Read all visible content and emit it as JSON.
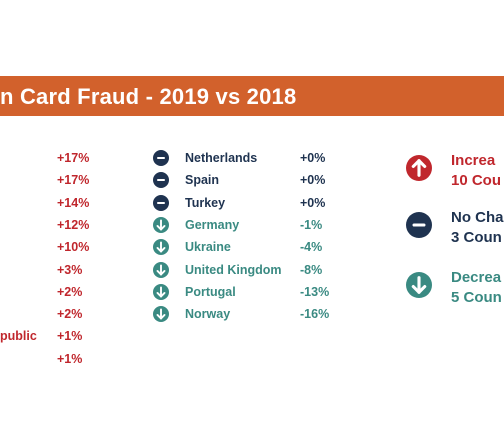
{
  "title": "n Card Fraud - 2019 vs 2018",
  "colors": {
    "increase": "#c0272d",
    "nochange": "#1f3350",
    "decrease": "#3a8a82",
    "banner": "#d2612c"
  },
  "chart_data": {
    "type": "table",
    "title": "n Card Fraud - 2019 vs 2018",
    "left_column": [
      {
        "country": "",
        "change": "+17%"
      },
      {
        "country": "",
        "change": "+17%"
      },
      {
        "country": "",
        "change": "+14%"
      },
      {
        "country": "",
        "change": "+12%"
      },
      {
        "country": "",
        "change": "+10%"
      },
      {
        "country": "",
        "change": "+3%"
      },
      {
        "country": "",
        "change": "+2%"
      },
      {
        "country": "",
        "change": "+2%"
      },
      {
        "country": "public",
        "change": "+1%"
      },
      {
        "country": "",
        "change": "+1%"
      }
    ],
    "right_column": [
      {
        "country": "Netherlands",
        "change": "+0%",
        "status": "nochange",
        "icon": "minus-circle-icon"
      },
      {
        "country": "Spain",
        "change": "+0%",
        "status": "nochange",
        "icon": "minus-circle-icon"
      },
      {
        "country": "Turkey",
        "change": "+0%",
        "status": "nochange",
        "icon": "minus-circle-icon"
      },
      {
        "country": "Germany",
        "change": "-1%",
        "status": "decrease",
        "icon": "arrow-down-circle-icon"
      },
      {
        "country": "Ukraine",
        "change": "-4%",
        "status": "decrease",
        "icon": "arrow-down-circle-icon"
      },
      {
        "country": "United Kingdom",
        "change": "-8%",
        "status": "decrease",
        "icon": "arrow-down-circle-icon"
      },
      {
        "country": "Portugal",
        "change": "-13%",
        "status": "decrease",
        "icon": "arrow-down-circle-icon"
      },
      {
        "country": "Norway",
        "change": "-16%",
        "status": "decrease",
        "icon": "arrow-down-circle-icon"
      }
    ],
    "legend": [
      {
        "status": "increase",
        "line1": "Increa",
        "line2": "10 Cou",
        "icon": "arrow-up-circle-icon"
      },
      {
        "status": "nochange",
        "line1": "No Cha",
        "line2": "3 Coun",
        "icon": "minus-circle-icon"
      },
      {
        "status": "decrease",
        "line1": "Decrea",
        "line2": "5 Coun",
        "icon": "arrow-down-circle-icon"
      }
    ]
  }
}
